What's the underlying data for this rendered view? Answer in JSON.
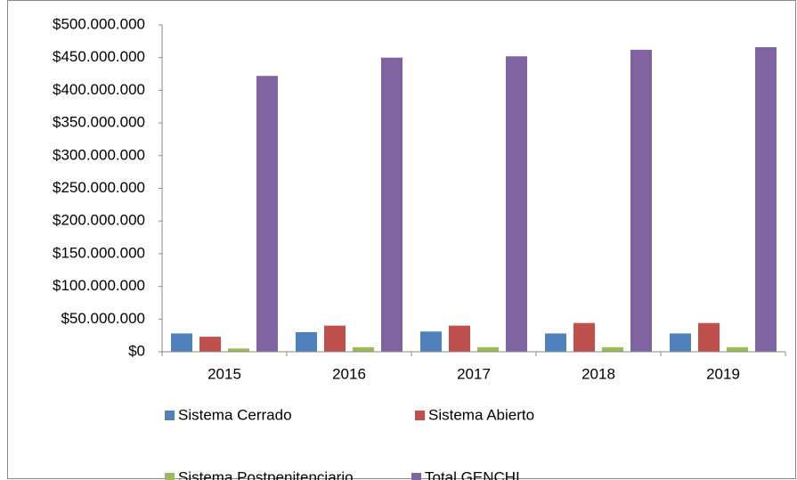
{
  "chart_data": {
    "type": "bar",
    "categories": [
      "2015",
      "2016",
      "2017",
      "2018",
      "2019"
    ],
    "series": [
      {
        "name": "Sistema Cerrado",
        "color": "#4f81bd",
        "values": [
          28000000,
          30000000,
          31000000,
          28000000,
          28000000
        ]
      },
      {
        "name": "Sistema Abierto",
        "color": "#c0504d",
        "values": [
          23000000,
          40000000,
          40000000,
          44000000,
          44000000
        ]
      },
      {
        "name": "Sistema Postpenitenciario",
        "color": "#9bbb59",
        "values": [
          5000000,
          7000000,
          7000000,
          7000000,
          7000000
        ]
      },
      {
        "name": "Total GENCHI",
        "color": "#8064a2",
        "values": [
          422000000,
          450000000,
          452000000,
          462000000,
          466000000
        ]
      }
    ],
    "ylim": [
      0,
      500000000
    ],
    "yticks": [
      {
        "value": 0,
        "label": "$0"
      },
      {
        "value": 50000000,
        "label": "$50.000.000"
      },
      {
        "value": 100000000,
        "label": "$100.000.000"
      },
      {
        "value": 150000000,
        "label": "$150.000.000"
      },
      {
        "value": 200000000,
        "label": "$200.000.000"
      },
      {
        "value": 250000000,
        "label": "$250.000.000"
      },
      {
        "value": 300000000,
        "label": "$300.000.000"
      },
      {
        "value": 350000000,
        "label": "$350.000.000"
      },
      {
        "value": 400000000,
        "label": "$400.000.000"
      },
      {
        "value": 450000000,
        "label": "$450.000.000"
      },
      {
        "value": 500000000,
        "label": "$500.000.000"
      }
    ],
    "grid": false,
    "legend": "bottom"
  }
}
